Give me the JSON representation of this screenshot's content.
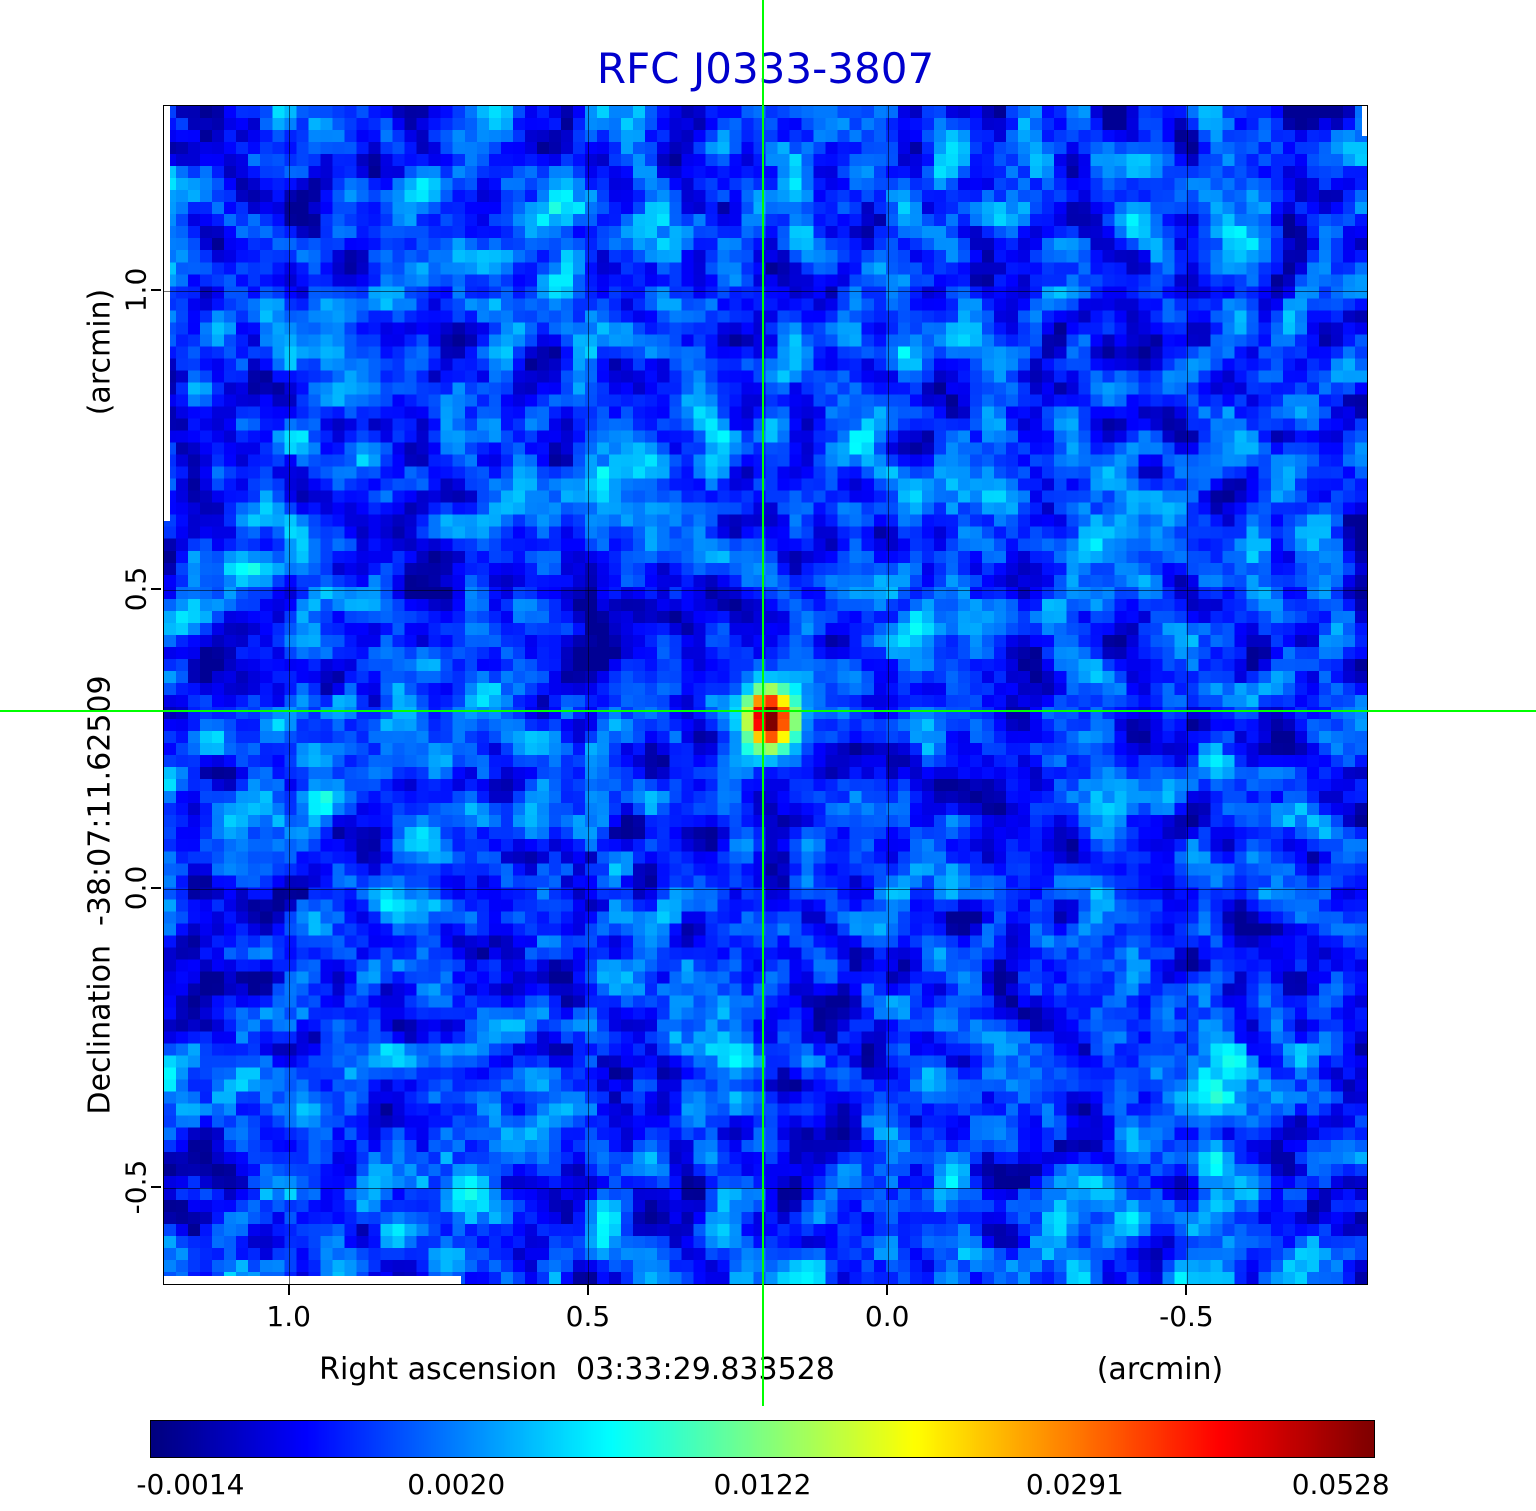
{
  "title": "RFC J0333-3807",
  "axes": {
    "y_unit": "(arcmin)",
    "y_label": "Declination  -38:07:11.62509",
    "x_label": "Right ascension  03:33:29.833528",
    "x_unit": "(arcmin)",
    "x_ticks": [
      "1.0",
      "0.5",
      "0.0",
      "-0.5"
    ],
    "y_ticks": [
      "1.0",
      "0.5",
      "0.0",
      "-0.5"
    ]
  },
  "colorbar": {
    "ticks": [
      "-0.0014",
      "0.0020",
      "0.0122",
      "0.0291",
      "0.0528"
    ]
  },
  "render": {
    "title_color": "#0000cd",
    "crosshair_color": "#00ff00",
    "grid_color": "#000000",
    "background_color": "#ffffff"
  },
  "chart_data": {
    "type": "heatmap",
    "title": "RFC J0333-3807",
    "xlabel": "Right ascension 03:33:29.833528 (arcmin)",
    "ylabel": "Declination -38:07:11.62509 (arcmin)",
    "x_ticks": [
      1.0,
      0.5,
      0.0,
      -0.5
    ],
    "y_ticks": [
      1.0,
      0.5,
      0.0,
      -0.5
    ],
    "x_range": [
      1.21,
      -0.8
    ],
    "y_range": [
      -0.66,
      1.31
    ],
    "colormap": "jet",
    "value_range": [
      -0.0014,
      0.0528
    ],
    "colorbar_ticks": [
      -0.0014,
      0.002,
      0.0122,
      0.0291,
      0.0528
    ],
    "peak": {
      "x_arcmin": 0.208,
      "y_arcmin": 0.297,
      "value": 0.0528
    },
    "background_mean_level": 0.002,
    "grid": true,
    "crosshair": {
      "x_arcmin": 0.208,
      "y_arcmin": 0.297
    },
    "description": "VLBI radio CLEAN map: speckled blue noise background, compact bright source at crosshair intersection with red-yellow core and cyan halo, faint dark diagonal sidelobe streaks radiating from the source."
  }
}
